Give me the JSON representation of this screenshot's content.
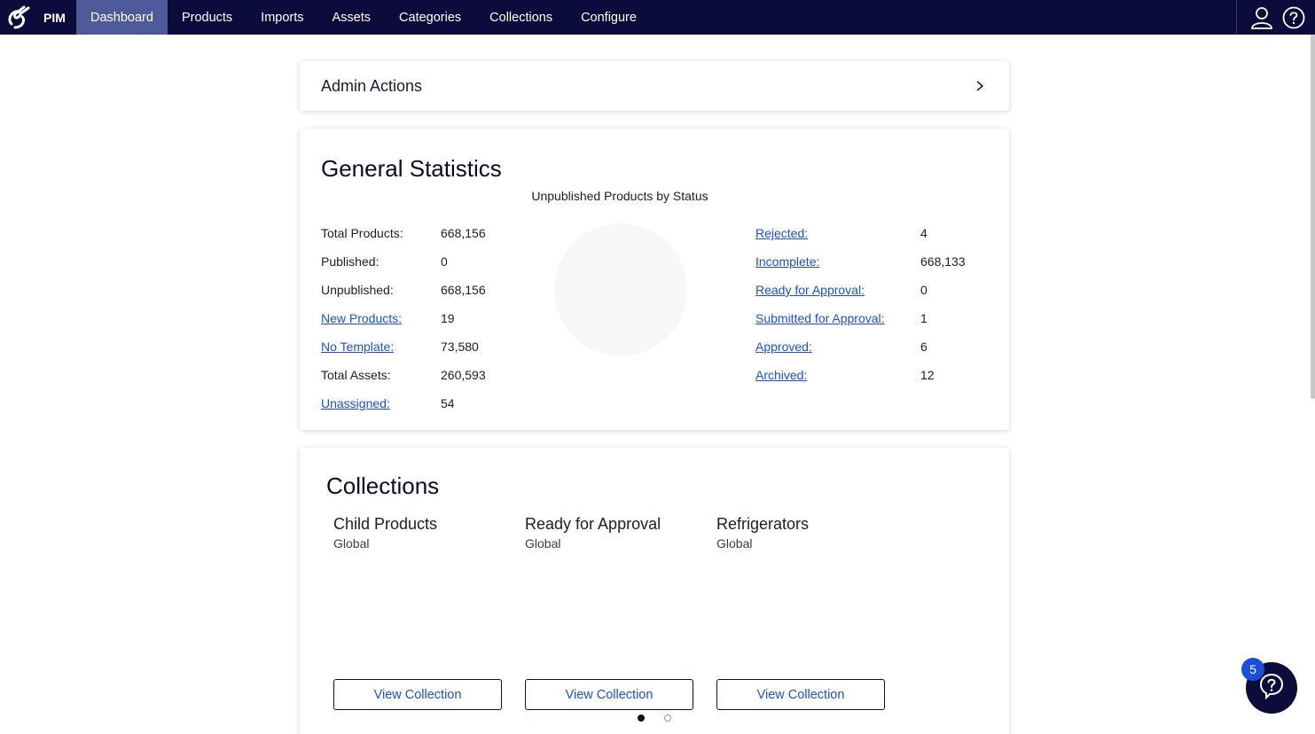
{
  "nav": {
    "brand": "PIM",
    "items": [
      {
        "label": "Dashboard",
        "active": true
      },
      {
        "label": "Products"
      },
      {
        "label": "Imports"
      },
      {
        "label": "Assets"
      },
      {
        "label": "Categories"
      },
      {
        "label": "Collections"
      },
      {
        "label": "Configure"
      }
    ],
    "icons": [
      "user-icon",
      "help-circle-icon"
    ]
  },
  "admin": {
    "title": "Admin Actions",
    "icon": "chevron-right-icon"
  },
  "stats": {
    "title": "General Statistics",
    "chart_title": "Unpublished Products by Status",
    "left": [
      {
        "label": "Total Products:",
        "value": "668,156",
        "link": false
      },
      {
        "label": "Published:",
        "value": "0",
        "link": false
      },
      {
        "label": "Unpublished:",
        "value": "668,156",
        "link": false
      },
      {
        "label": "New Products:",
        "value": "19",
        "link": true
      },
      {
        "label": "No Template:",
        "value": "73,580",
        "link": true
      },
      {
        "label": "Total Assets:",
        "value": "260,593",
        "link": false
      },
      {
        "label": "Unassigned:",
        "value": "54",
        "link": true
      }
    ],
    "right": [
      {
        "label": "Rejected:",
        "value": "4"
      },
      {
        "label": "Incomplete:",
        "value": "668,133"
      },
      {
        "label": "Ready for Approval:",
        "value": "0"
      },
      {
        "label": "Submitted for Approval:",
        "value": "1"
      },
      {
        "label": "Approved:",
        "value": "6"
      },
      {
        "label": "Archived:",
        "value": "12"
      }
    ]
  },
  "collections": {
    "title": "Collections",
    "items": [
      {
        "name": "Child Products",
        "scope": "Global",
        "button": "View Collection"
      },
      {
        "name": "Ready for Approval",
        "scope": "Global",
        "button": "View Collection"
      },
      {
        "name": "Refrigerators",
        "scope": "Global",
        "button": "View Collection"
      }
    ],
    "pages": 2,
    "current_page": 1
  },
  "help": {
    "badge": "5",
    "icon": "question-bubble-icon"
  },
  "colors": {
    "nav_bg": "#0b0c3b",
    "nav_active": "#4e5a9a",
    "link": "#1b4fd8"
  }
}
